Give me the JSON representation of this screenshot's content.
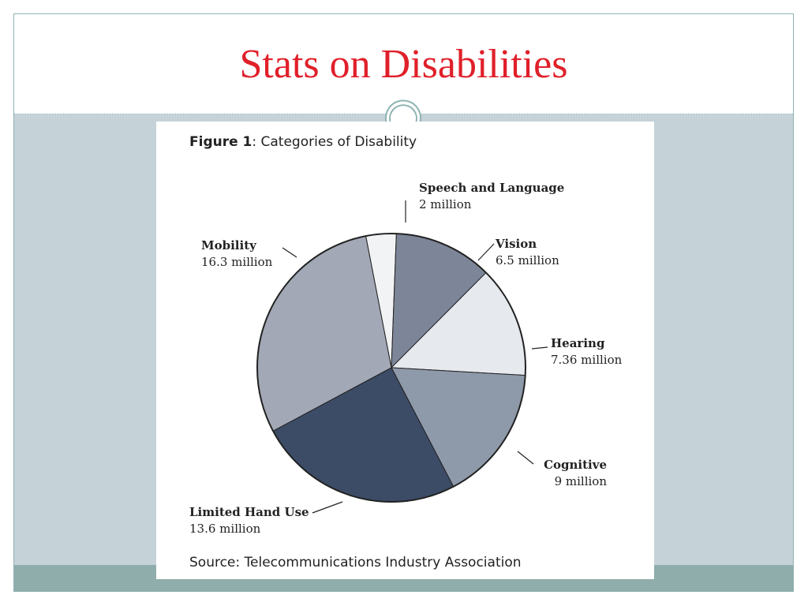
{
  "slide": {
    "title": "Stats on Disabilities"
  },
  "figure": {
    "caption_bold": "Figure 1",
    "caption_rest": ": Categories of Disability",
    "source": "Source: Telecommunications Industry Association"
  },
  "colors": {
    "title": "#e0202a",
    "body_band": "#c5d2d8",
    "footer_band": "#8fadaa"
  },
  "chart_data": {
    "type": "pie",
    "title": "Categories of Disability",
    "units": "million",
    "slices": [
      {
        "name": "Speech and Language",
        "value": 2,
        "label": "2 million",
        "color": "#f2f3f5"
      },
      {
        "name": "Vision",
        "value": 6.5,
        "label": "6.5 million",
        "color": "#7d8598"
      },
      {
        "name": "Hearing",
        "value": 7.36,
        "label": "7.36 million",
        "color": "#e6e9ee"
      },
      {
        "name": "Cognitive",
        "value": 9,
        "label": "9 million",
        "color": "#8e99aa"
      },
      {
        "name": "Limited Hand Use",
        "value": 13.6,
        "label": "13.6 million",
        "color": "#3c4c66"
      },
      {
        "name": "Mobility",
        "value": 16.3,
        "label": "16.3 million",
        "color": "#a2a8b6"
      }
    ]
  }
}
